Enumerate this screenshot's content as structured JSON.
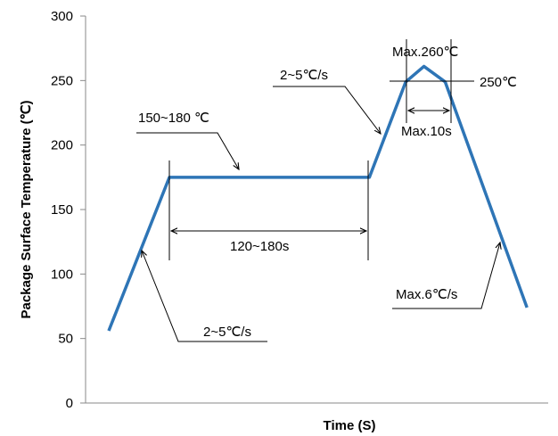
{
  "chart_data": {
    "type": "line",
    "title": "",
    "xlabel": "Time (S)",
    "ylabel": "Package Surface Temperature (℃)",
    "ylim": [
      0,
      300
    ],
    "yticks": [
      "0",
      "50",
      "100",
      "150",
      "200",
      "250",
      "300"
    ],
    "grid": false,
    "series": [
      {
        "color": "#2E75B6",
        "points": [
          {
            "x": 0,
            "y": 56
          },
          {
            "x": 20,
            "y": 175
          },
          {
            "x": 86,
            "y": 175
          },
          {
            "x": 98,
            "y": 249
          },
          {
            "x": 104,
            "y": 261
          },
          {
            "x": 111,
            "y": 249
          },
          {
            "x": 138,
            "y": 74
          }
        ]
      }
    ],
    "annotations": {
      "preheat_temp": "150~180 ℃",
      "preheat_time": "120~180s",
      "ramp_up_rate_1": "2~5℃/s",
      "ramp_up_rate_2": "2~5℃/s",
      "peak_max": "Max.260℃",
      "peak_ref": "250℃",
      "peak_time": "Max.10s",
      "cool_down": "Max.6℃/s"
    }
  }
}
